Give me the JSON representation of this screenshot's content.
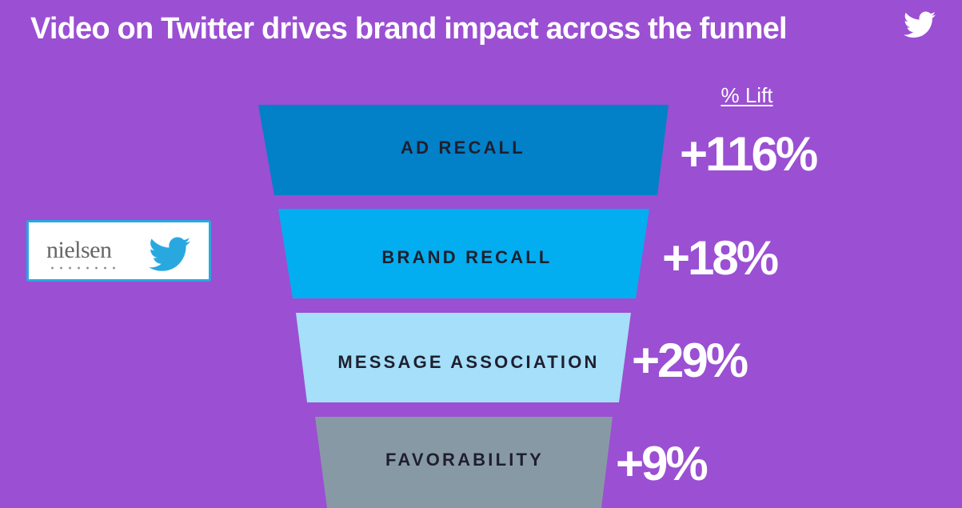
{
  "chart_data": {
    "type": "funnel",
    "title": "Video on Twitter drives brand impact across the funnel",
    "value_header": "% Lift",
    "categories": [
      "AD RECALL",
      "BRAND RECALL",
      "MESSAGE ASSOCIATION",
      "FAVORABILITY"
    ],
    "value_labels": [
      "+116%",
      "+18%",
      "+29%",
      "+9%"
    ],
    "values": [
      116,
      18,
      29,
      9
    ],
    "unit": "%"
  },
  "colors": {
    "background": "#9b4fd3",
    "bands": [
      "#0280c8",
      "#02aef0",
      "#a5dffa",
      "#8899a6"
    ],
    "twitter_blue": "#29a8e0"
  },
  "logos": {
    "partner_name": "nielsen",
    "icons": [
      "twitter-bird-icon"
    ]
  }
}
